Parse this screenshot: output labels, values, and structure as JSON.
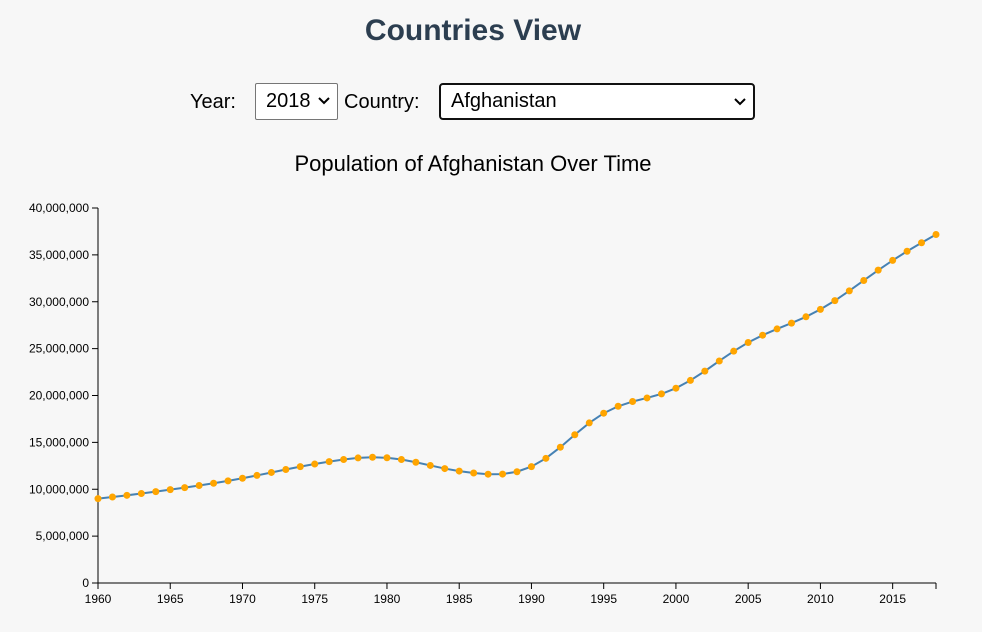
{
  "header": {
    "title": "Countries View"
  },
  "controls": {
    "year_label": "Year:",
    "year_value": "2018",
    "country_label": "Country:",
    "country_value": "Afghanistan"
  },
  "chart_data": {
    "type": "line",
    "title": "Population of Afghanistan Over Time",
    "xlabel": "",
    "ylabel": "",
    "xlim": [
      1960,
      2018
    ],
    "ylim": [
      0,
      40000000
    ],
    "x_ticks": [
      1960,
      1965,
      1970,
      1975,
      1980,
      1985,
      1990,
      1995,
      2000,
      2005,
      2010,
      2015
    ],
    "y_ticks": [
      0,
      5000000,
      10000000,
      15000000,
      20000000,
      25000000,
      30000000,
      35000000,
      40000000
    ],
    "grid": false,
    "legend": "none",
    "line_color": "#4682b4",
    "point_color": "#ffa500",
    "series": [
      {
        "x": [
          1960,
          1961,
          1962,
          1963,
          1964,
          1965,
          1966,
          1967,
          1968,
          1969,
          1970,
          1971,
          1972,
          1973,
          1974,
          1975,
          1976,
          1977,
          1978,
          1979,
          1980,
          1981,
          1982,
          1983,
          1984,
          1985,
          1986,
          1987,
          1988,
          1989,
          1990,
          1991,
          1992,
          1993,
          1994,
          1995,
          1996,
          1997,
          1998,
          1999,
          2000,
          2001,
          2002,
          2003,
          2004,
          2005,
          2006,
          2007,
          2008,
          2009,
          2010,
          2011,
          2012,
          2013,
          2014,
          2015,
          2016,
          2017,
          2018
        ],
        "values": [
          8996973,
          9169410,
          9351441,
          9543205,
          9744781,
          9956320,
          10174836,
          10399926,
          10637063,
          10893776,
          11173642,
          11475445,
          11791215,
          12108963,
          12412950,
          12689160,
          12943093,
          13171306,
          13341198,
          13411056,
          13356511,
          13171673,
          12882528,
          12537730,
          12204292,
          11938208,
          11736179,
          11604534,
          11618005,
          11868877,
          12412308,
          13299017,
          14485546,
          15816603,
          17075727,
          18110657,
          18853437,
          19357126,
          19737765,
          20170844,
          20779953,
          21606988,
          22600770,
          23680871,
          24726684,
          25654277,
          26433049,
          27100536,
          27722276,
          28394813,
          29185507,
          30117413,
          31161376,
          32269589,
          33370794,
          34413603,
          35383128,
          36296400,
          37172386
        ]
      }
    ]
  }
}
